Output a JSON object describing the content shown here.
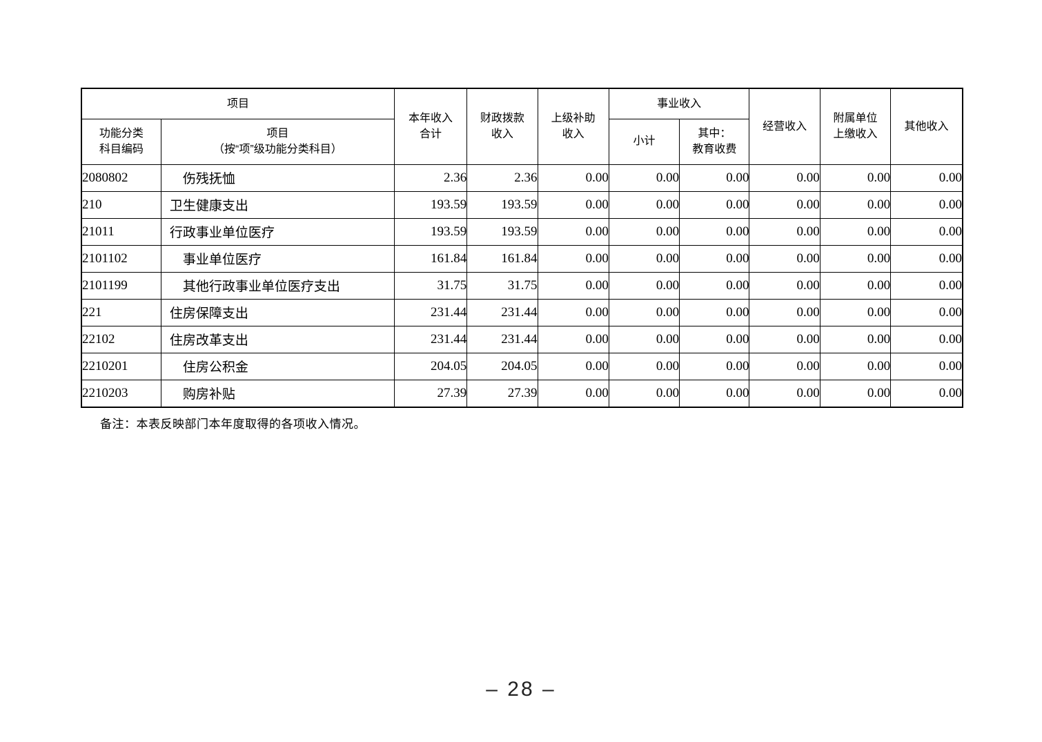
{
  "table": {
    "header": {
      "project_group": "项目",
      "code": "功能分类\n科目编码",
      "item": "项目\n（按“项”级功能分类科目）",
      "annual_income_total": "本年收入\n合计",
      "fiscal_appropriation_income": "财政拨款\n收入",
      "superior_subsidy_income": "上级补助\n收入",
      "business_income_group": "事业收入",
      "subtotal": "小计",
      "education_fee": "其中：\n教育收费",
      "operating_income": "经营收入",
      "affiliated_unit_income": "附属单位\n上缴收入",
      "other_income": "其他收入"
    },
    "rows": [
      {
        "code": "2080802",
        "item": "伤残抚恤",
        "indent": 2,
        "values": [
          "2.36",
          "2.36",
          "0.00",
          "0.00",
          "0.00",
          "0.00",
          "0.00",
          "0.00"
        ]
      },
      {
        "code": "210",
        "item": "卫生健康支出",
        "indent": 1,
        "values": [
          "193.59",
          "193.59",
          "0.00",
          "0.00",
          "0.00",
          "0.00",
          "0.00",
          "0.00"
        ]
      },
      {
        "code": "21011",
        "item": "行政事业单位医疗",
        "indent": 1,
        "values": [
          "193.59",
          "193.59",
          "0.00",
          "0.00",
          "0.00",
          "0.00",
          "0.00",
          "0.00"
        ]
      },
      {
        "code": "2101102",
        "item": "事业单位医疗",
        "indent": 2,
        "values": [
          "161.84",
          "161.84",
          "0.00",
          "0.00",
          "0.00",
          "0.00",
          "0.00",
          "0.00"
        ]
      },
      {
        "code": "2101199",
        "item": "其他行政事业单位医疗支出",
        "indent": 2,
        "values": [
          "31.75",
          "31.75",
          "0.00",
          "0.00",
          "0.00",
          "0.00",
          "0.00",
          "0.00"
        ]
      },
      {
        "code": "221",
        "item": "住房保障支出",
        "indent": 1,
        "values": [
          "231.44",
          "231.44",
          "0.00",
          "0.00",
          "0.00",
          "0.00",
          "0.00",
          "0.00"
        ]
      },
      {
        "code": "22102",
        "item": "住房改革支出",
        "indent": 1,
        "values": [
          "231.44",
          "231.44",
          "0.00",
          "0.00",
          "0.00",
          "0.00",
          "0.00",
          "0.00"
        ]
      },
      {
        "code": "2210201",
        "item": "住房公积金",
        "indent": 2,
        "values": [
          "204.05",
          "204.05",
          "0.00",
          "0.00",
          "0.00",
          "0.00",
          "0.00",
          "0.00"
        ]
      },
      {
        "code": "2210203",
        "item": "购房补贴",
        "indent": 2,
        "values": [
          "27.39",
          "27.39",
          "0.00",
          "0.00",
          "0.00",
          "0.00",
          "0.00",
          "0.00"
        ]
      }
    ]
  },
  "note": "备注：本表反映部门本年度取得的各项收入情况。",
  "page_number": "– 28 –"
}
